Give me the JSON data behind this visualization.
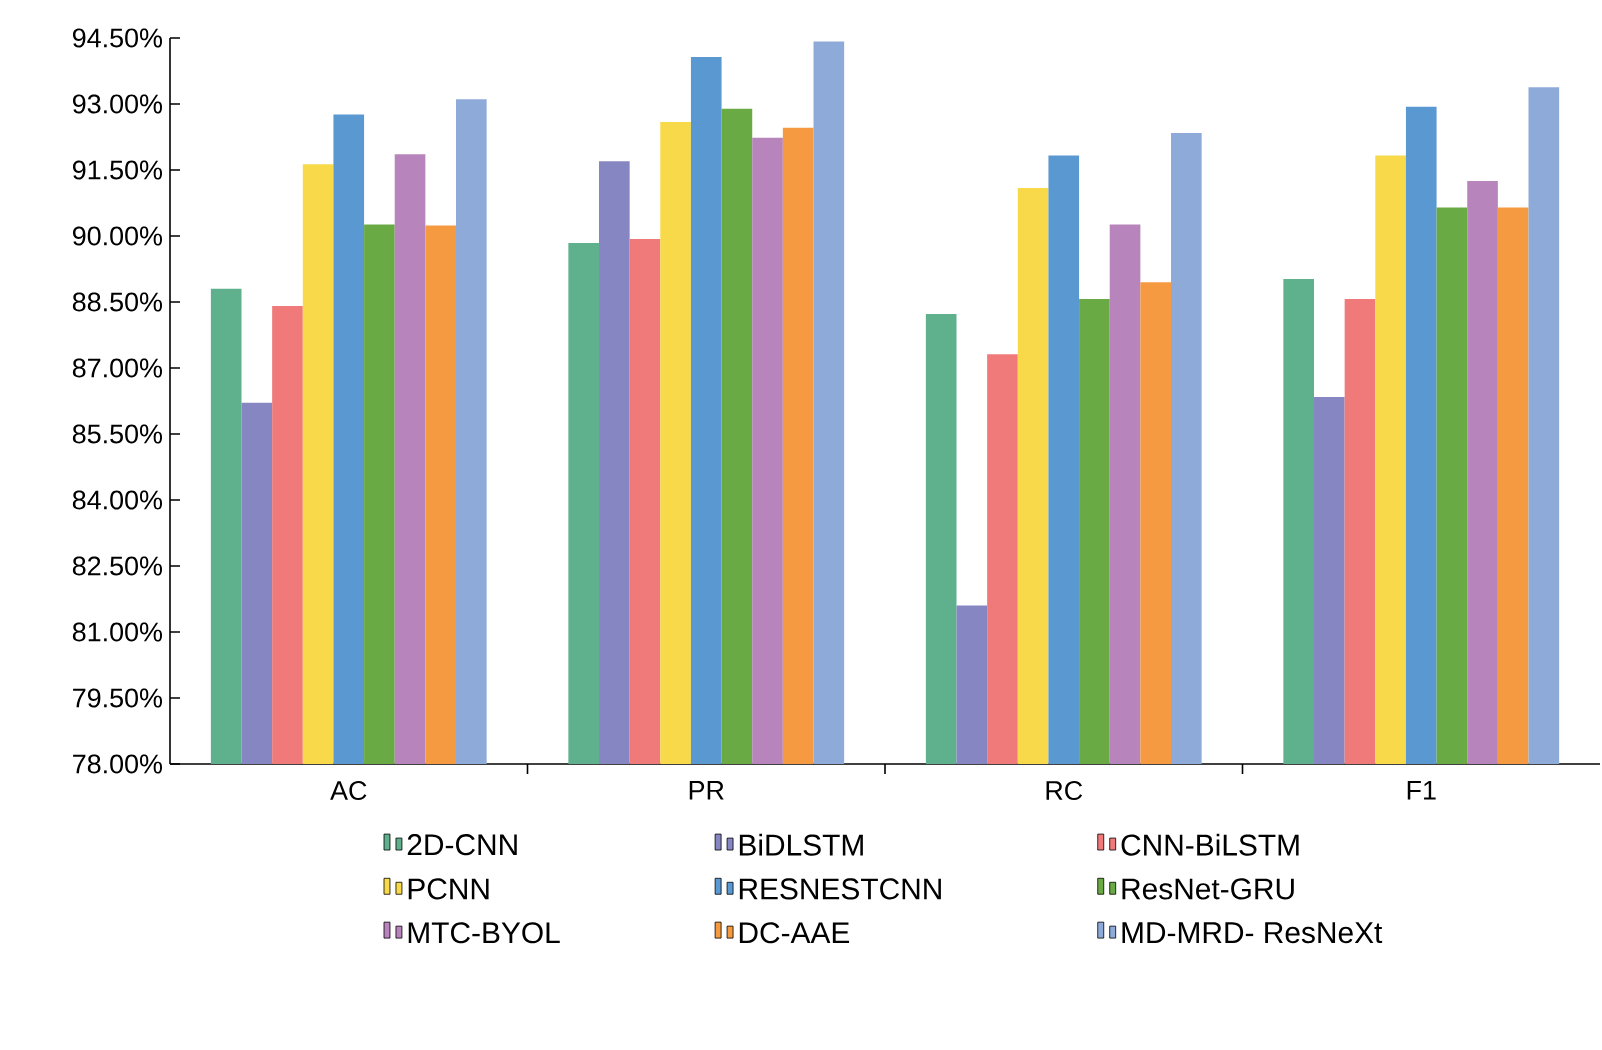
{
  "chart_data": {
    "type": "bar",
    "categories": [
      "AC",
      "PR",
      "RC",
      "F1"
    ],
    "series": [
      {
        "name": "2D-CNN",
        "color": "#5fb08c",
        "values": [
          88.8,
          89.84,
          88.23,
          89.02
        ]
      },
      {
        "name": "BiDLSTM",
        "color": "#8686c2",
        "values": [
          86.21,
          91.7,
          81.6,
          86.34
        ]
      },
      {
        "name": "CNN-BiLSTM",
        "color": "#f07a7a",
        "values": [
          88.41,
          89.93,
          87.31,
          88.57
        ]
      },
      {
        "name": "PCNN",
        "color": "#f7d94a",
        "values": [
          91.63,
          92.59,
          91.09,
          91.83
        ]
      },
      {
        "name": "RESNESTCNN",
        "color": "#5a98d2",
        "values": [
          92.76,
          94.07,
          91.83,
          92.94
        ]
      },
      {
        "name": "ResNet-GRU",
        "color": "#6aaa45",
        "values": [
          90.26,
          92.89,
          88.57,
          90.65
        ]
      },
      {
        "name": "MTC-BYOL",
        "color": "#b884bc",
        "values": [
          91.86,
          92.23,
          90.26,
          91.25
        ]
      },
      {
        "name": "DC-AAE",
        "color": "#f59a40",
        "values": [
          90.24,
          92.46,
          88.95,
          90.65
        ]
      },
      {
        "name": "MD-MRD- ResNeXt",
        "color": "#8eaad9",
        "values": [
          93.11,
          94.42,
          92.34,
          93.38
        ]
      }
    ],
    "ylim": [
      78,
      94.5
    ],
    "yticks": [
      {
        "value": 78,
        "label": "78.00%"
      },
      {
        "value": 79.5,
        "label": "79.50%"
      },
      {
        "value": 81,
        "label": "81.00%"
      },
      {
        "value": 82.5,
        "label": "82.50%"
      },
      {
        "value": 84,
        "label": "84.00%"
      },
      {
        "value": 85.5,
        "label": "85.50%"
      },
      {
        "value": 87,
        "label": "87.00%"
      },
      {
        "value": 88.5,
        "label": "88.50%"
      },
      {
        "value": 90,
        "label": "90.00%"
      },
      {
        "value": 91.5,
        "label": "91.50%"
      },
      {
        "value": 93,
        "label": "93.00%"
      },
      {
        "value": 94.5,
        "label": "94.50%"
      }
    ],
    "grid": false,
    "legend": "bottom"
  }
}
